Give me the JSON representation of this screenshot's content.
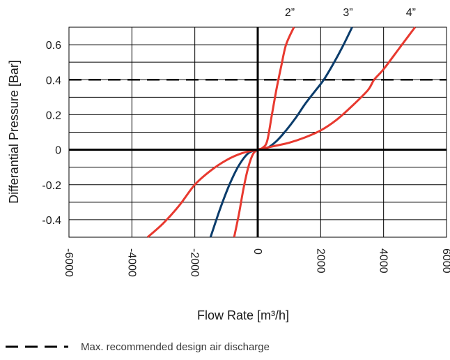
{
  "chart_data": {
    "type": "line",
    "title": "",
    "xlabel": "Flow Rate [m³/h]",
    "ylabel": "Differantial Pressure [Bar]",
    "xlim": [
      -6000,
      6000
    ],
    "ylim": [
      -0.5,
      0.7
    ],
    "x_ticks": [
      "-6000",
      "-4000",
      "-2000",
      "0",
      "2000",
      "4000",
      "6000"
    ],
    "y_ticks": [
      "-0.4",
      "-0.2",
      "0",
      "0.2",
      "0.4",
      "0.6"
    ],
    "grid": true,
    "series": [
      {
        "name": "2”",
        "color": "#e8392f",
        "points": [
          [
            -750,
            -0.5
          ],
          [
            -600,
            -0.37
          ],
          [
            -450,
            -0.22
          ],
          [
            -300,
            -0.1
          ],
          [
            -150,
            -0.025
          ],
          [
            0,
            0
          ],
          [
            150,
            0.01
          ],
          [
            300,
            0.05
          ],
          [
            450,
            0.2
          ],
          [
            600,
            0.35
          ],
          [
            750,
            0.48
          ],
          [
            900,
            0.6
          ],
          [
            1150,
            0.7
          ]
        ]
      },
      {
        "name": "3”",
        "color": "#0b3c6b",
        "points": [
          [
            -1500,
            -0.5
          ],
          [
            -1200,
            -0.34
          ],
          [
            -900,
            -0.2
          ],
          [
            -600,
            -0.09
          ],
          [
            -300,
            -0.02
          ],
          [
            0,
            0
          ],
          [
            300,
            0.01
          ],
          [
            600,
            0.05
          ],
          [
            900,
            0.11
          ],
          [
            1200,
            0.18
          ],
          [
            1500,
            0.26
          ],
          [
            1800,
            0.33
          ],
          [
            2100,
            0.4
          ],
          [
            2400,
            0.49
          ],
          [
            2700,
            0.59
          ],
          [
            3000,
            0.7
          ]
        ]
      },
      {
        "name": "4”",
        "color": "#e8392f",
        "points": [
          [
            -3500,
            -0.5
          ],
          [
            -3000,
            -0.42
          ],
          [
            -2500,
            -0.32
          ],
          [
            -2000,
            -0.2
          ],
          [
            -1500,
            -0.12
          ],
          [
            -1000,
            -0.06
          ],
          [
            -500,
            -0.02
          ],
          [
            0,
            0
          ],
          [
            500,
            0.02
          ],
          [
            1000,
            0.04
          ],
          [
            1500,
            0.07
          ],
          [
            2000,
            0.11
          ],
          [
            2500,
            0.17
          ],
          [
            3000,
            0.25
          ],
          [
            3500,
            0.34
          ],
          [
            3700,
            0.4
          ],
          [
            4000,
            0.46
          ],
          [
            4500,
            0.58
          ],
          [
            5000,
            0.7
          ]
        ]
      }
    ],
    "reference_line": {
      "y": 0.4,
      "style": "dashed",
      "color": "#000000",
      "legend_label": "Max. recommended design air discharge"
    }
  }
}
